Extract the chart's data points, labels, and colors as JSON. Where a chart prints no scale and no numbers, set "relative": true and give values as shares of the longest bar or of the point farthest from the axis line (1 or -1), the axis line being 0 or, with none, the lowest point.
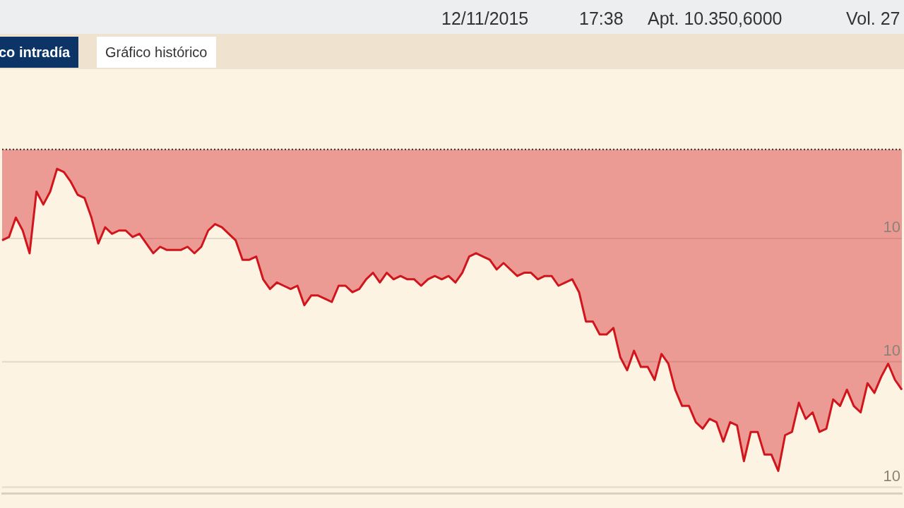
{
  "chart_data": {
    "type": "area",
    "relative": true,
    "grid": "y",
    "annotations": [
      "12/11/2015",
      "17:38",
      "Apt. 10.350,6000",
      "Vol. 27",
      "co intradía",
      "Gráfico histórico",
      "10",
      "10",
      "10"
    ],
    "categories": [
      null,
      null,
      null,
      null,
      null,
      null,
      null,
      null,
      null,
      null,
      null,
      null,
      null,
      null,
      null,
      null,
      null,
      null,
      null,
      null,
      null,
      null,
      null,
      null,
      null,
      null,
      null,
      null,
      null,
      null,
      null,
      null,
      null,
      null,
      null,
      null,
      null,
      null,
      null,
      null,
      null,
      null,
      null,
      null,
      null,
      null,
      null,
      null,
      null,
      null,
      null,
      null,
      null,
      null,
      null,
      null,
      null,
      null,
      null,
      null,
      null,
      null,
      null,
      null,
      null,
      null,
      null,
      null,
      null,
      null,
      null,
      null,
      null,
      null,
      null,
      null,
      null,
      null,
      null,
      null,
      null,
      null,
      null,
      null,
      null,
      null,
      null,
      null,
      null,
      null,
      null,
      null,
      null,
      null,
      null,
      null,
      null,
      null,
      null,
      null,
      null,
      null,
      null,
      null,
      null,
      null,
      null,
      null,
      null,
      null,
      null,
      null,
      null,
      null,
      null,
      null,
      null,
      null,
      null,
      null,
      null,
      null,
      null,
      null,
      null,
      null,
      null,
      null,
      null,
      null,
      null,
      null
    ],
    "ref_lines": [
      {
        "axis": "y",
        "value": 1.06,
        "color": "#333333",
        "line_style": "dotted"
      }
    ],
    "line_style": "solid",
    "marker": "none",
    "series": [
      {
        "color": "#d0151d",
        "values": [
          0.78,
          0.79,
          0.85,
          0.81,
          0.74,
          0.93,
          0.89,
          0.93,
          1.0,
          0.99,
          0.96,
          0.92,
          0.91,
          0.85,
          0.77,
          0.82,
          0.8,
          0.81,
          0.81,
          0.79,
          0.8,
          0.77,
          0.74,
          0.76,
          0.75,
          0.75,
          0.75,
          0.76,
          0.74,
          0.76,
          0.81,
          0.83,
          0.82,
          0.8,
          0.78,
          0.72,
          0.72,
          0.73,
          0.66,
          0.63,
          0.65,
          0.64,
          0.63,
          0.64,
          0.58,
          0.61,
          0.61,
          0.6,
          0.59,
          0.64,
          0.64,
          0.62,
          0.63,
          0.66,
          0.68,
          0.65,
          0.68,
          0.66,
          0.67,
          0.66,
          0.66,
          0.64,
          0.66,
          0.67,
          0.66,
          0.67,
          0.65,
          0.68,
          0.73,
          0.74,
          0.73,
          0.72,
          0.69,
          0.71,
          0.69,
          0.67,
          0.68,
          0.68,
          0.66,
          0.67,
          0.67,
          0.64,
          0.65,
          0.66,
          0.62,
          0.53,
          0.53,
          0.49,
          0.49,
          0.51,
          0.42,
          0.38,
          0.44,
          0.39,
          0.39,
          0.35,
          0.43,
          0.4,
          0.32,
          0.27,
          0.27,
          0.22,
          0.2,
          0.23,
          0.22,
          0.16,
          0.22,
          0.21,
          0.1,
          0.19,
          0.19,
          0.12,
          0.12,
          0.07,
          0.18,
          0.19,
          0.28,
          0.23,
          0.25,
          0.19,
          0.2,
          0.29,
          0.27,
          0.32,
          0.27,
          0.25,
          0.34,
          0.31,
          0.36,
          0.4,
          0.35,
          0.32
        ]
      }
    ]
  }
}
